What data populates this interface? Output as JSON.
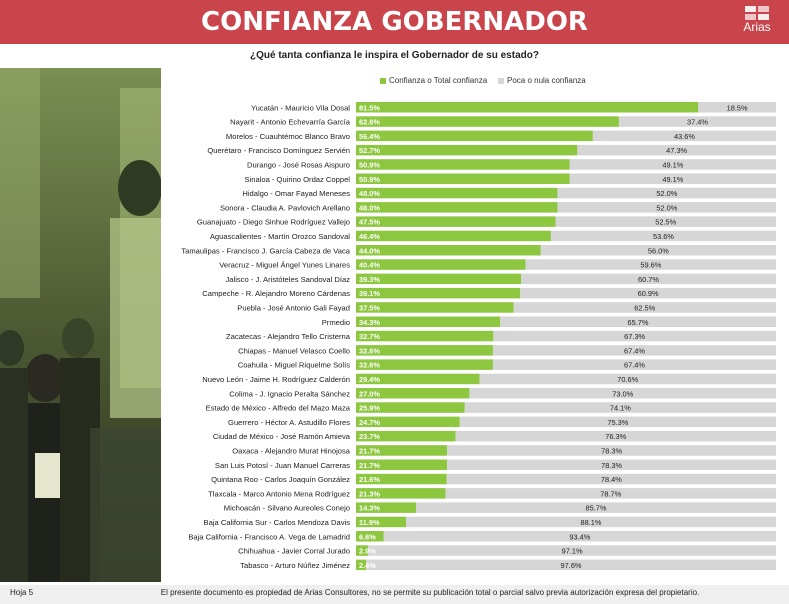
{
  "header": {
    "title": "CONFIANZA GOBERNADOR",
    "logo_text": "Arias"
  },
  "question": "¿Qué tanta confianza le inspira el Gobernador de su estado?",
  "footer": {
    "page": "Hoja 5",
    "note": "El presente documento es propiedad de Arias Consultores, no se permite su publicación total o parcial salvo previa autorización expresa del propietario."
  },
  "colors": {
    "header": "#c9454b",
    "confianza": "#8dc63f",
    "poca": "#d6d6d6"
  },
  "chart_data": {
    "type": "bar",
    "orientation": "horizontal",
    "stacked": true,
    "value_suffix": "%",
    "xlim": [
      0,
      100
    ],
    "legend_position": "top",
    "categories": [
      "Yucatán - Mauricio Vila Dosal",
      "Nayarit - Antonio Echevarría García",
      "Morelos - Cuauhtémoc Blanco Bravo",
      "Querétaro - Francisco Domínguez Servién",
      "Durango - José Rosas Aispuro",
      "Sinaloa - Quirino Ordaz Coppel",
      "Hidalgo - Omar Fayad Meneses",
      "Sonora - Claudia A. Pavlovich Arellano",
      "Guanajuato - Diego Sinhue Rodríguez Vallejo",
      "Aguascalientes - Martín Orozco Sandoval",
      "Tamaulipas - Francisco J. García Cabeza de Vaca",
      "Veracruz - Miguel Ángel Yunes Linares",
      "Jalisco - J. Aristóteles Sandoval Díaz",
      "Campeche - R. Alejandro Moreno Cárdenas",
      "Puebla - José Antonio Gali Fayad",
      "Prmedio",
      "Zacatecas - Alejandro Tello Cristerna",
      "Chiapas - Manuel Velasco Coello",
      "Coahuila - Miguel Riquelme Solís",
      "Nuevo León - Jaime H. Rodríguez Calderón",
      "Colima - J. Ignacio Peralta Sánchez",
      "Estado de México - Alfredo del Mazo Maza",
      "Guerrero - Héctor A. Astudillo Flores",
      "Ciudad de México - José Ramón Amieva",
      "Oaxaca - Alejandro Murat Hinojosa",
      "San Luis Potosí - Juan Manuel Carreras",
      "Quintana Roo - Carlos Joaquín González",
      "Tlaxcala - Marco Antonio Mena Rodríguez",
      "Michoacán - Silvano Aureoles Conejo",
      "Baja California Sur - Carlos Mendoza Davis",
      "Baja California - Francisco A. Vega de Lamadrid",
      "Chihuahua - Javier Corral Jurado",
      "Tabasco - Arturo Núñez Jiménez"
    ],
    "series": [
      {
        "name": "Confianza o Total confianza",
        "color": "#8dc63f",
        "values": [
          81.5,
          62.6,
          56.4,
          52.7,
          50.9,
          50.9,
          48.0,
          48.0,
          47.5,
          46.4,
          44.0,
          40.4,
          39.3,
          39.1,
          37.5,
          34.3,
          32.7,
          32.6,
          32.6,
          29.4,
          27.0,
          25.9,
          24.7,
          23.7,
          21.7,
          21.7,
          21.6,
          21.3,
          14.3,
          11.9,
          6.6,
          2.9,
          2.4
        ]
      },
      {
        "name": "Poca o nula confianza",
        "color": "#d6d6d6",
        "values": [
          18.5,
          37.4,
          43.6,
          47.3,
          49.1,
          49.1,
          52.0,
          52.0,
          52.5,
          53.6,
          56.0,
          59.6,
          60.7,
          60.9,
          62.5,
          65.7,
          67.3,
          67.4,
          67.4,
          70.6,
          73.0,
          74.1,
          75.3,
          76.3,
          78.3,
          78.3,
          78.4,
          78.7,
          85.7,
          88.1,
          93.4,
          97.1,
          97.6
        ]
      }
    ]
  }
}
